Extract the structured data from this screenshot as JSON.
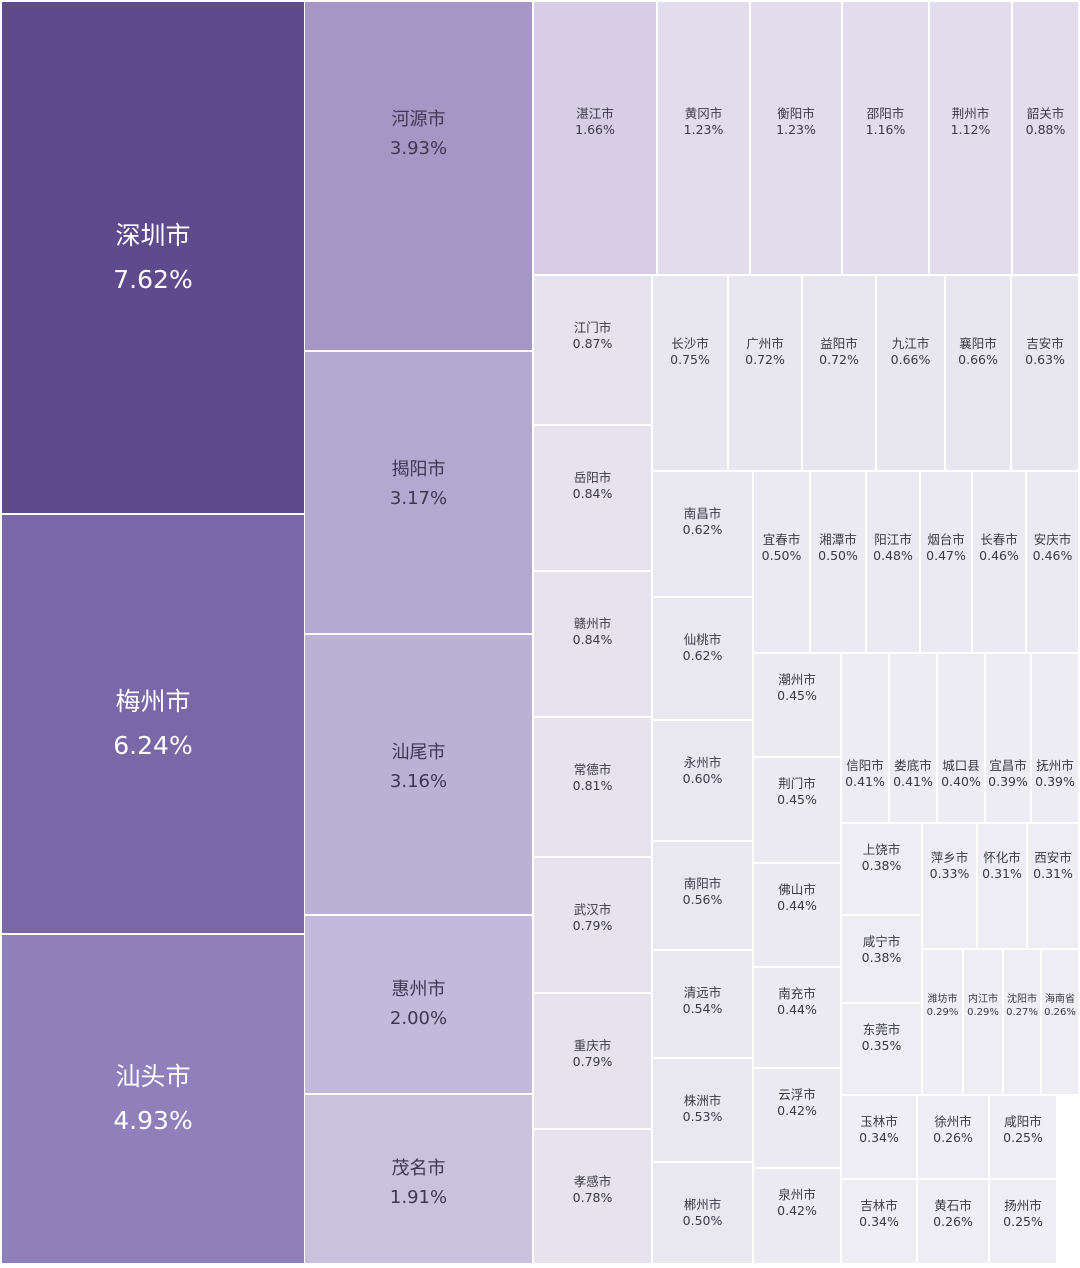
{
  "chart_data": {
    "type": "treemap",
    "unit": "%",
    "items": [
      {
        "name": "深圳市",
        "value": 7.62
      },
      {
        "name": "梅州市",
        "value": 6.24
      },
      {
        "name": "汕头市",
        "value": 4.93
      },
      {
        "name": "河源市",
        "value": 3.93
      },
      {
        "name": "揭阳市",
        "value": 3.17
      },
      {
        "name": "汕尾市",
        "value": 3.16
      },
      {
        "name": "惠州市",
        "value": 2.0
      },
      {
        "name": "茂名市",
        "value": 1.91
      },
      {
        "name": "湛江市",
        "value": 1.66
      },
      {
        "name": "黄冈市",
        "value": 1.23
      },
      {
        "name": "衡阳市",
        "value": 1.23
      },
      {
        "name": "邵阳市",
        "value": 1.16
      },
      {
        "name": "荆州市",
        "value": 1.12
      },
      {
        "name": "韶关市",
        "value": 0.88
      },
      {
        "name": "江门市",
        "value": 0.87
      },
      {
        "name": "长沙市",
        "value": 0.75
      },
      {
        "name": "广州市",
        "value": 0.72
      },
      {
        "name": "益阳市",
        "value": 0.72
      },
      {
        "name": "九江市",
        "value": 0.66
      },
      {
        "name": "襄阳市",
        "value": 0.66
      },
      {
        "name": "吉安市",
        "value": 0.63
      },
      {
        "name": "岳阳市",
        "value": 0.84
      },
      {
        "name": "赣州市",
        "value": 0.84
      },
      {
        "name": "常德市",
        "value": 0.81
      },
      {
        "name": "武汉市",
        "value": 0.79
      },
      {
        "name": "重庆市",
        "value": 0.79
      },
      {
        "name": "孝感市",
        "value": 0.78
      },
      {
        "name": "南昌市",
        "value": 0.62
      },
      {
        "name": "仙桃市",
        "value": 0.62
      },
      {
        "name": "永州市",
        "value": 0.6
      },
      {
        "name": "南阳市",
        "value": 0.56
      },
      {
        "name": "清远市",
        "value": 0.54
      },
      {
        "name": "株洲市",
        "value": 0.53
      },
      {
        "name": "郴州市",
        "value": 0.5
      },
      {
        "name": "宜春市",
        "value": 0.5
      },
      {
        "name": "湘潭市",
        "value": 0.5
      },
      {
        "name": "阳江市",
        "value": 0.48
      },
      {
        "name": "烟台市",
        "value": 0.47
      },
      {
        "name": "长春市",
        "value": 0.46
      },
      {
        "name": "安庆市",
        "value": 0.46
      },
      {
        "name": "潮州市",
        "value": 0.45
      },
      {
        "name": "荆门市",
        "value": 0.45
      },
      {
        "name": "佛山市",
        "value": 0.44
      },
      {
        "name": "南充市",
        "value": 0.44
      },
      {
        "name": "云浮市",
        "value": 0.42
      },
      {
        "name": "泉州市",
        "value": 0.42
      },
      {
        "name": "信阳市",
        "value": 0.41
      },
      {
        "name": "娄底市",
        "value": 0.41
      },
      {
        "name": "城口县",
        "value": 0.4
      },
      {
        "name": "宜昌市",
        "value": 0.39
      },
      {
        "name": "抚州市",
        "value": 0.39
      },
      {
        "name": "上饶市",
        "value": 0.38
      },
      {
        "name": "咸宁市",
        "value": 0.38
      },
      {
        "name": "东莞市",
        "value": 0.35
      },
      {
        "name": "萍乡市",
        "value": 0.33
      },
      {
        "name": "怀化市",
        "value": 0.31
      },
      {
        "name": "西安市",
        "value": 0.31
      },
      {
        "name": "潍坊市",
        "value": 0.29
      },
      {
        "name": "内江市",
        "value": 0.29
      },
      {
        "name": "沈阳市",
        "value": 0.27
      },
      {
        "name": "海南省",
        "value": 0.26
      },
      {
        "name": "玉林市",
        "value": 0.34
      },
      {
        "name": "徐州市",
        "value": 0.26
      },
      {
        "name": "咸阳市",
        "value": 0.25
      },
      {
        "name": "吉林市",
        "value": 0.34
      },
      {
        "name": "黄石市",
        "value": 0.26
      },
      {
        "name": "扬州市",
        "value": 0.25
      }
    ]
  }
}
